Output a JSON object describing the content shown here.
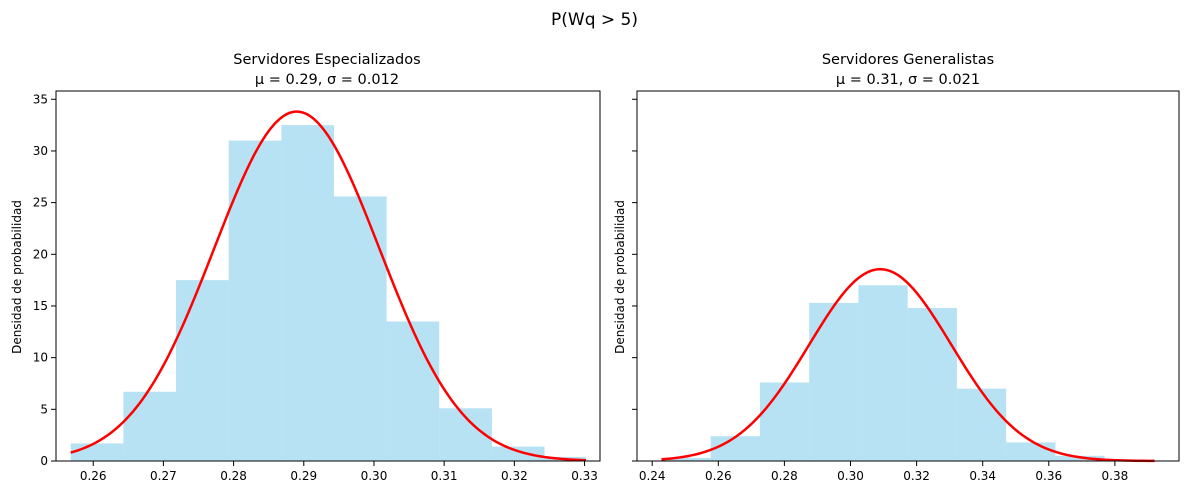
{
  "suptitle": "P(Wq > 5)",
  "colors": {
    "hist": "#87ceeb",
    "hist_alpha": 0.6,
    "curve": "#ff0000",
    "axis": "#000000"
  },
  "chart_data": [
    {
      "type": "bar",
      "title_line1": "Servidores Especializados",
      "title_line2": "μ = 0.29, σ = 0.012",
      "ylabel": "Densidad de probabilidad",
      "xlabel": "",
      "xlim": [
        0.2547,
        0.3322
      ],
      "ylim": [
        0,
        35.8
      ],
      "x_ticks": [
        0.26,
        0.27,
        0.28,
        0.29,
        0.3,
        0.31,
        0.32,
        0.33
      ],
      "x_tick_labels": [
        "0.26",
        "0.27",
        "0.28",
        "0.29",
        "0.30",
        "0.31",
        "0.32",
        "0.33"
      ],
      "y_ticks": [
        0,
        5,
        10,
        15,
        20,
        25,
        30,
        35
      ],
      "y_tick_labels": [
        "0",
        "5",
        "10",
        "15",
        "20",
        "25",
        "30",
        "35"
      ],
      "bin_edges": [
        0.2568,
        0.2643,
        0.2718,
        0.2793,
        0.2868,
        0.2943,
        0.3018,
        0.3093,
        0.3168,
        0.3243,
        0.3302
      ],
      "bin_density": [
        1.7,
        6.7,
        17.5,
        31.0,
        32.5,
        25.6,
        13.5,
        5.1,
        1.4,
        0.4
      ],
      "normal_curve": {
        "mu": 0.289,
        "sigma": 0.0118,
        "x_from": 0.2568,
        "x_to": 0.3302
      }
    },
    {
      "type": "bar",
      "title_line1": "Servidores Generalistas",
      "title_line2": "μ = 0.31, σ = 0.021",
      "ylabel": "Densidad de probabilidad",
      "xlabel": "",
      "xlim": [
        0.2354,
        0.3994
      ],
      "ylim": [
        0,
        35.8
      ],
      "x_ticks": [
        0.24,
        0.26,
        0.28,
        0.3,
        0.32,
        0.34,
        0.36,
        0.38
      ],
      "x_tick_labels": [
        "0.24",
        "0.26",
        "0.28",
        "0.30",
        "0.32",
        "0.34",
        "0.36",
        "0.38"
      ],
      "y_ticks": [
        0,
        5,
        10,
        15,
        20,
        25,
        30,
        35
      ],
      "y_tick_labels": [
        "",
        "",
        "",
        "",
        "",
        "",
        "",
        ""
      ],
      "bin_edges": [
        0.2428,
        0.2577,
        0.2726,
        0.2875,
        0.3024,
        0.3173,
        0.3322,
        0.3471,
        0.362,
        0.3769,
        0.392
      ],
      "bin_density": [
        0.3,
        2.4,
        7.6,
        15.3,
        17.0,
        14.8,
        7.0,
        1.8,
        0.5,
        0.1
      ],
      "normal_curve": {
        "mu": 0.309,
        "sigma": 0.0215,
        "x_from": 0.2428,
        "x_to": 0.392
      }
    }
  ]
}
